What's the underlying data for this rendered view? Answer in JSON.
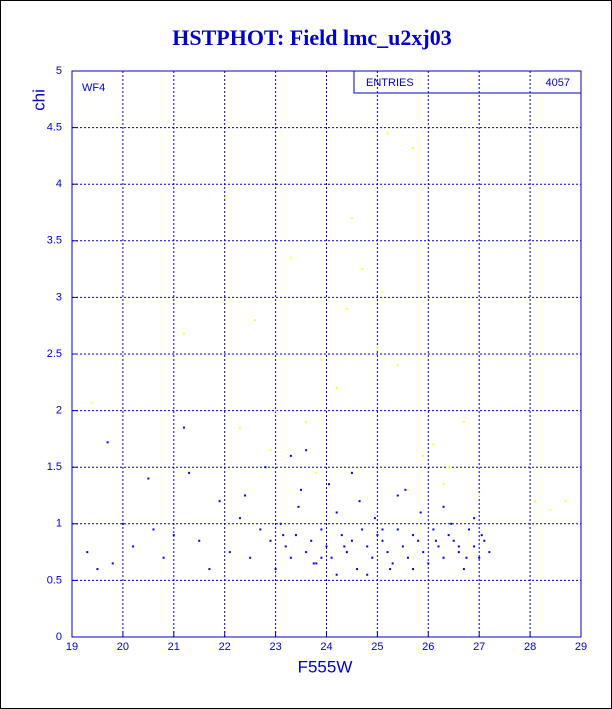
{
  "chart_data": {
    "type": "scatter",
    "title": "HSTPHOT: Field lmc_u2xj03",
    "panel_label": "WF4",
    "stats_label": "ENTRIES",
    "stats_value": "4057",
    "xlabel": "F555W",
    "ylabel": "chi",
    "xlim": [
      19,
      29
    ],
    "ylim": [
      0,
      5
    ],
    "xticks": [
      19,
      20,
      21,
      22,
      23,
      24,
      25,
      26,
      27,
      28,
      29
    ],
    "yticks": [
      0,
      0.5,
      1,
      1.5,
      2,
      2.5,
      3,
      3.5,
      4,
      4.5,
      5
    ],
    "grid": true,
    "series": [
      {
        "color": "#0000ee",
        "x": [
          19.3,
          19.5,
          19.8,
          20.0,
          20.2,
          20.5,
          20.8,
          21.0,
          21.2,
          21.5,
          21.7,
          21.9,
          22.1,
          22.3,
          22.5,
          22.7,
          22.9,
          23.0,
          23.1,
          23.2,
          23.3,
          23.4,
          23.5,
          23.6,
          23.7,
          23.8,
          23.9,
          24.0,
          24.1,
          24.2,
          24.3,
          24.4,
          24.5,
          24.6,
          24.7,
          24.8,
          24.9,
          25.0,
          25.1,
          25.2,
          25.3,
          25.4,
          25.5,
          25.6,
          25.7,
          25.8,
          25.9,
          26.0,
          26.1,
          26.2,
          26.3,
          26.4,
          26.5,
          26.6,
          26.7,
          26.8,
          26.9,
          27.0,
          27.1,
          27.2,
          22.4,
          22.8,
          23.15,
          23.45,
          23.75,
          24.05,
          24.35,
          24.65,
          24.95,
          25.25,
          25.55,
          25.85,
          26.15,
          26.45,
          26.75,
          27.05,
          23.3,
          23.9,
          24.5,
          25.1,
          25.7,
          26.3,
          26.9,
          24.2,
          25.4,
          26.6,
          19.7,
          21.3,
          20.6,
          24.8,
          23.6
        ],
        "y": [
          0.75,
          0.6,
          0.65,
          1.0,
          0.8,
          1.4,
          0.7,
          0.9,
          1.85,
          0.85,
          0.6,
          1.2,
          0.75,
          1.05,
          0.7,
          0.95,
          0.85,
          0.6,
          1.0,
          0.8,
          0.7,
          0.9,
          1.3,
          0.75,
          0.85,
          0.65,
          0.95,
          0.8,
          0.7,
          1.1,
          0.9,
          0.75,
          0.85,
          0.6,
          0.95,
          0.8,
          0.7,
          0.9,
          0.85,
          0.75,
          0.65,
          0.95,
          0.8,
          0.7,
          0.9,
          0.85,
          0.75,
          0.65,
          0.95,
          0.8,
          0.7,
          0.9,
          0.85,
          0.75,
          0.6,
          0.95,
          0.8,
          0.7,
          0.85,
          0.75,
          1.25,
          1.5,
          0.9,
          1.15,
          0.65,
          1.35,
          0.8,
          1.2,
          1.05,
          0.6,
          1.3,
          1.1,
          0.85,
          1.0,
          0.7,
          0.9,
          1.6,
          0.7,
          1.45,
          0.95,
          0.6,
          1.15,
          1.05,
          0.55,
          1.25,
          0.8,
          1.72,
          1.45,
          0.95,
          0.55,
          1.65
        ]
      },
      {
        "color": "#ffff33",
        "x": [
          19.4,
          21.2,
          22.0,
          22.3,
          22.6,
          23.0,
          23.3,
          23.6,
          23.9,
          24.2,
          24.5,
          24.7,
          25.0,
          25.2,
          25.4,
          25.7,
          25.9,
          26.1,
          26.4,
          26.7,
          27.0,
          28.1,
          28.4,
          28.7,
          24.4,
          25.6,
          22.9,
          23.8,
          26.3,
          25.1
        ],
        "y": [
          2.07,
          2.68,
          3.88,
          1.85,
          2.8,
          2.0,
          3.35,
          1.9,
          2.45,
          2.2,
          3.7,
          3.25,
          2.55,
          4.45,
          2.4,
          4.32,
          1.6,
          1.7,
          1.5,
          1.9,
          1.25,
          1.2,
          1.12,
          1.2,
          2.9,
          1.3,
          1.65,
          1.45,
          1.35,
          3.05
        ]
      }
    ]
  }
}
